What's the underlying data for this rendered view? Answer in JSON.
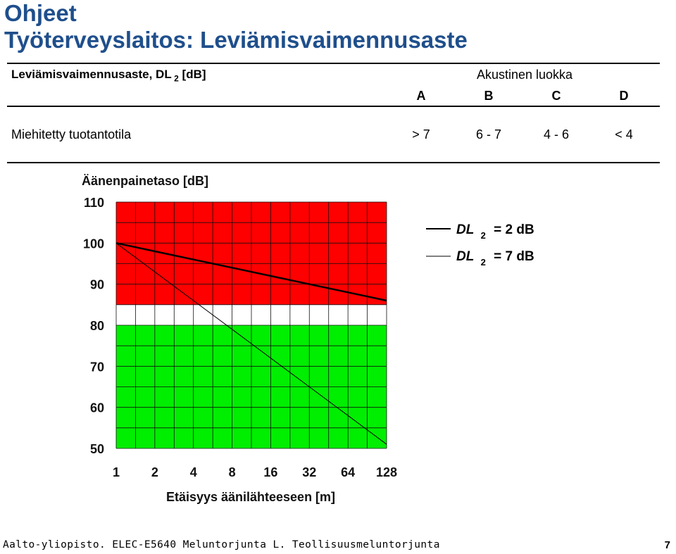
{
  "header": {
    "title": "Ohjeet",
    "subtitle": "Työterveyslaitos: Leviämisvaimennusaste"
  },
  "table": {
    "left_label_main": "Leviämisvaimennusaste, DL",
    "left_label_sub": "2",
    "left_label_unit": "[dB]",
    "group_label": "Akustinen luokka",
    "classes": [
      "A",
      "B",
      "C",
      "D"
    ],
    "row_label": "Miehitetty tuotantotila",
    "row_values": [
      "> 7",
      "6 - 7",
      "4 - 6",
      "< 4"
    ]
  },
  "chart_data": {
    "type": "line",
    "ylabel": "Äänenpainetaso [dB]",
    "xlabel": "Etäisyys äänilähteeseen [m]",
    "x": [
      1,
      2,
      4,
      8,
      16,
      32,
      64,
      128
    ],
    "x_scale": "log2",
    "x_tick_labels": [
      "1",
      "2",
      "4",
      "8",
      "16",
      "32",
      "64",
      "128"
    ],
    "y_ticks": [
      50,
      60,
      70,
      80,
      90,
      100,
      110
    ],
    "ylim": [
      50,
      110
    ],
    "grid": true,
    "zones": [
      {
        "from": 85,
        "to": 110,
        "color": "#ff0000"
      },
      {
        "from": 80,
        "to": 85,
        "color": "#ffffff"
      },
      {
        "from": 50,
        "to": 80,
        "color": "#00ee00"
      }
    ],
    "series": [
      {
        "legend_main": "DL",
        "legend_sub": "2",
        "legend_rest": "= 2 dB",
        "values": [
          100,
          98,
          96,
          94,
          92,
          90,
          88,
          86
        ],
        "color": "#000000",
        "width": "thick"
      },
      {
        "legend_main": "DL",
        "legend_sub": "2",
        "legend_rest": "= 7 dB",
        "values": [
          100,
          93,
          86,
          79,
          72,
          65,
          58,
          51
        ],
        "color": "#000000",
        "width": "thin"
      }
    ],
    "legend_position": "right"
  },
  "footer": {
    "text": "Aalto-yliopisto. ELEC-E5640 Meluntorjunta L. Teollisuusmeluntorjunta",
    "page": "7"
  }
}
